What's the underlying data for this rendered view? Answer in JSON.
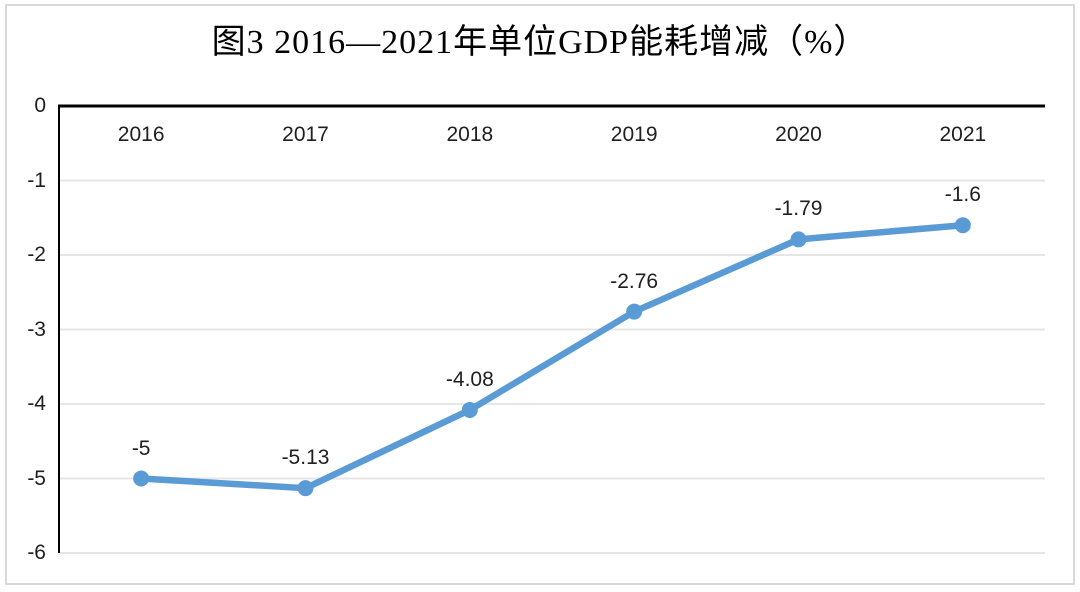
{
  "chart_data": {
    "type": "line",
    "title": "图3 2016—2021年单位GDP能耗增减（%）",
    "categories": [
      "2016",
      "2017",
      "2018",
      "2019",
      "2020",
      "2021"
    ],
    "series": [
      {
        "name": "单位GDP能耗增减",
        "values": [
          -5,
          -5.13,
          -4.08,
          -2.76,
          -1.79,
          -1.6
        ]
      }
    ],
    "data_labels": [
      "-5",
      "-5.13",
      "-4.08",
      "-2.76",
      "-1.79",
      "-1.6"
    ],
    "y_ticks": [
      "0",
      "-1",
      "-2",
      "-3",
      "-4",
      "-5",
      "-6"
    ],
    "ylim": [
      0,
      -6
    ],
    "xlabel": "",
    "ylabel": "",
    "grid": "horizontal",
    "legend": "none",
    "x_axis_label_position": "inside-top",
    "data_label_position": "above",
    "line_color": "#5b9bd5",
    "marker_color": "#5b9bd5",
    "axis_color": "#000000",
    "gridline_color": "#e6e6e6",
    "text_color": "#1f1f1f",
    "frame_border_color": "#d9d9d9",
    "background_color": "#ffffff"
  }
}
